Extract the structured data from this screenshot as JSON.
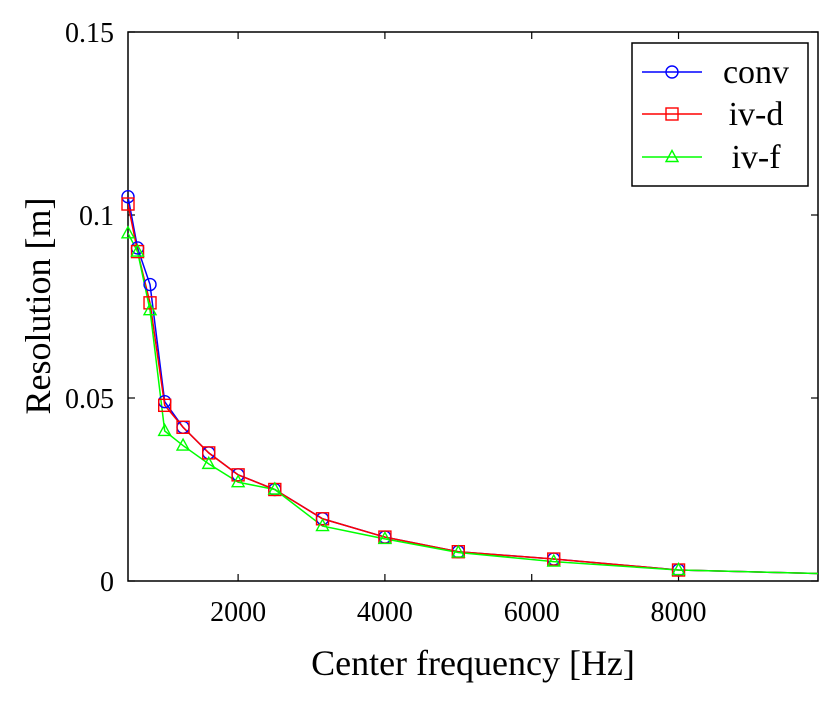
{
  "chart_data": {
    "type": "line",
    "xlabel": "Center frequency [Hz]",
    "ylabel": "Resolution [m]",
    "xlim": [
      500,
      9900
    ],
    "ylim": [
      0,
      0.15
    ],
    "xticks": [
      2000,
      4000,
      6000,
      8000
    ],
    "xtick_labels": [
      "2000",
      "4000",
      "6000",
      "8000"
    ],
    "yticks": [
      0,
      0.05,
      0.1,
      0.15
    ],
    "ytick_labels": [
      "0",
      "0.05",
      "0.1",
      "0.15"
    ],
    "legend_position": "top-right",
    "grid": false,
    "series": [
      {
        "name": "conv",
        "color": "#0000ff",
        "marker": "circle",
        "x": [
          500,
          630,
          800,
          1000,
          1250,
          1600,
          2000,
          2500,
          3150,
          4000,
          5000,
          6300,
          8000,
          10000
        ],
        "y": [
          0.105,
          0.091,
          0.081,
          0.049,
          0.042,
          0.035,
          0.029,
          0.025,
          0.017,
          0.012,
          0.008,
          0.006,
          0.003,
          0.002
        ]
      },
      {
        "name": "iv-d",
        "color": "#ff0000",
        "marker": "square",
        "x": [
          500,
          630,
          800,
          1000,
          1250,
          1600,
          2000,
          2500,
          3150,
          4000,
          5000,
          6300,
          8000,
          10000
        ],
        "y": [
          0.103,
          0.09,
          0.076,
          0.048,
          0.042,
          0.035,
          0.029,
          0.025,
          0.017,
          0.012,
          0.008,
          0.006,
          0.003,
          0.002
        ]
      },
      {
        "name": "iv-f",
        "color": "#00ff00",
        "marker": "triangle",
        "x": [
          500,
          630,
          800,
          1000,
          1250,
          1600,
          2000,
          2500,
          3150,
          4000,
          5000,
          6300,
          8000,
          10000
        ],
        "y": [
          0.095,
          0.09,
          0.074,
          0.041,
          0.037,
          0.032,
          0.027,
          0.025,
          0.015,
          0.0115,
          0.0078,
          0.0053,
          0.003,
          0.002
        ]
      }
    ]
  }
}
